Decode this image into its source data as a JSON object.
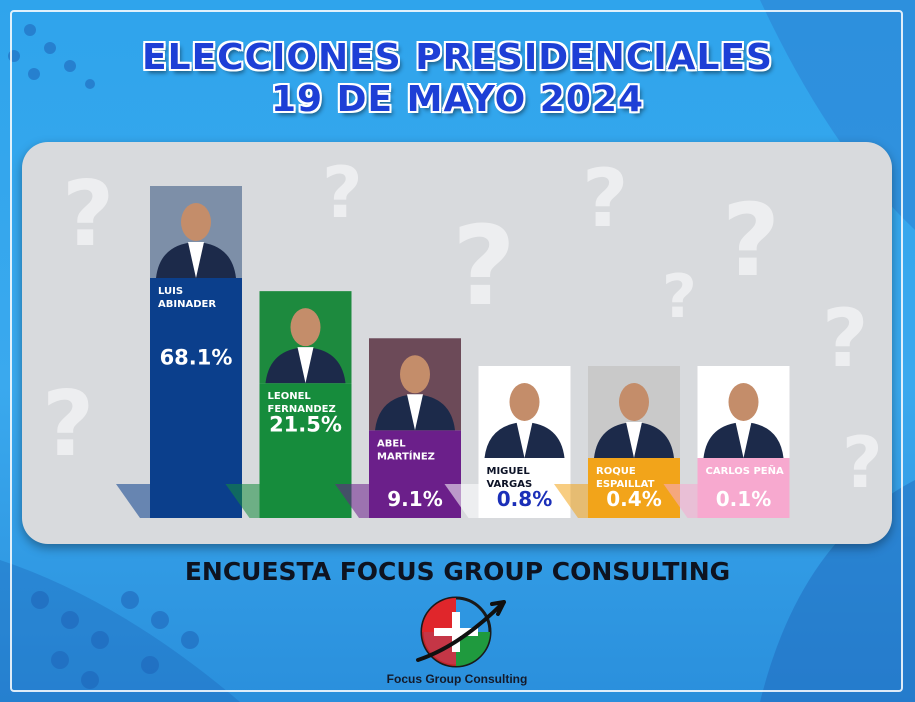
{
  "header": {
    "title_line1": "ELECCIONES PRESIDENCIALES",
    "title_line2": "19 DE MAYO 2024"
  },
  "footer": {
    "survey_label": "ENCUESTA FOCUS GROUP CONSULTING",
    "logo_caption": "Focus Group Consulting"
  },
  "chart_data": {
    "type": "bar",
    "categories": [
      "LUIS ABINADER",
      "LEONEL FERNANDEZ",
      "ABEL MARTÍNEZ",
      "MIGUEL VARGAS",
      "ROQUE ESPAILLAT",
      "CARLOS PEÑA"
    ],
    "name_lines": [
      [
        "LUIS",
        "ABINADER"
      ],
      [
        "LEONEL",
        "FERNANDEZ"
      ],
      [
        "ABEL",
        "MARTÍNEZ"
      ],
      [
        "MIGUEL",
        "VARGAS"
      ],
      [
        "ROQUE",
        "ESPAILLAT"
      ],
      [
        "CARLOS PEÑA"
      ]
    ],
    "values": [
      68.1,
      21.5,
      9.1,
      0.8,
      0.4,
      0.1
    ],
    "value_labels": [
      "68.1%",
      "21.5%",
      "9.1%",
      "0.8%",
      "0.4%",
      "0.1%"
    ],
    "colors": [
      "#0b3f8c",
      "#168c3c",
      "#6b1f8a",
      "#ffffff",
      "#f2a41a",
      "#f7a9cf"
    ],
    "label_colors": [
      "#ffffff",
      "#ffffff",
      "#ffffff",
      "#1b2fb8",
      "#ffffff",
      "#ffffff"
    ],
    "photo_backgrounds": [
      "#7d8fa8",
      "#1d8a3e",
      "#6c4a58",
      "#ffffff",
      "#c9c9c9",
      "#ffffff"
    ],
    "title": "ELECCIONES PRESIDENCIALES 19 DE MAYO 2024",
    "xlabel": "",
    "ylabel": "",
    "grid": false
  },
  "icons": {
    "logo": "focus-group-consulting-logo",
    "decor": "question-mark-icon"
  }
}
